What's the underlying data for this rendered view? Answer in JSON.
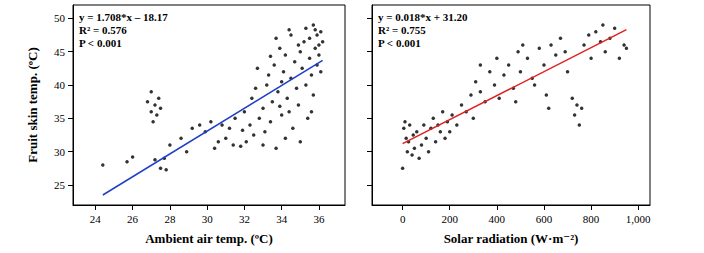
{
  "chart_data": [
    {
      "type": "scatter",
      "x_label": "Ambient air temp. (ºC)",
      "y_label": "Fruit skin temp. (ºC)",
      "annotations": [
        "y = 1.708*x – 18.17",
        "R² = 0.576",
        "P < 0.001"
      ],
      "xlim": [
        22.8,
        37.4
      ],
      "xticks": [
        24,
        26,
        28,
        30,
        32,
        34,
        36
      ],
      "ylim": [
        22,
        52
      ],
      "yticks": [
        25,
        30,
        35,
        40,
        45,
        50
      ],
      "grid": false,
      "series": [
        {
          "type": "scatter",
          "color": "#000000",
          "marker": "circle",
          "x": [
            24.4,
            25.7,
            26,
            26.8,
            27,
            27,
            27.1,
            27.2,
            27.3,
            27.4,
            27.5,
            27.2,
            27.5,
            27.7,
            27.8,
            28,
            28.6,
            28.9,
            29.2,
            29.6,
            29.9,
            30.2,
            30.4,
            30.6,
            30.8,
            31,
            31.2,
            31.4,
            31.5,
            31.8,
            31.9,
            32,
            32.1,
            32.3,
            32.4,
            32.5,
            32.6,
            32.8,
            33,
            33,
            33.1,
            33.2,
            33.3,
            33.4,
            33.5,
            33.6,
            33.7,
            33.7,
            33.8,
            33.9,
            34,
            34,
            34.1,
            34.2,
            34.2,
            34.3,
            34.4,
            34.5,
            34.5,
            34.6,
            34.7,
            34.8,
            34.9,
            35,
            35,
            35.1,
            35.2,
            35.3,
            35.3,
            35.4,
            35.5,
            35.5,
            35.6,
            35.7,
            35.7,
            35.8,
            35.9,
            35.9,
            36,
            36,
            36.1,
            36.1,
            36.2,
            35.6,
            35.8,
            34.9,
            33.9,
            32.7,
            33.4,
            34.4
          ],
          "values": [
            28,
            28.5,
            29.2,
            37.5,
            39,
            36,
            34.5,
            37,
            35.5,
            38,
            36.5,
            28.8,
            27.5,
            29,
            27.3,
            31,
            32,
            30,
            33.5,
            34,
            33,
            34.5,
            30.5,
            31.5,
            34,
            32,
            33.5,
            31,
            35,
            30.8,
            33.2,
            36,
            31.5,
            34,
            38,
            32.5,
            39.5,
            35,
            31,
            36.5,
            33,
            40,
            41.5,
            34.5,
            37.5,
            43,
            30.5,
            47,
            39,
            45.5,
            35.5,
            40.5,
            42,
            32,
            44.5,
            38,
            36,
            41,
            47.5,
            33.5,
            43.5,
            39.5,
            37,
            45,
            31.5,
            42.5,
            46.5,
            40,
            48.5,
            35,
            44,
            47,
            41.5,
            38.5,
            49,
            45.5,
            43,
            47.5,
            46,
            44.5,
            48,
            42,
            46.5,
            36,
            48.3,
            46,
            36.8,
            42.5,
            44.3,
            48.3
          ]
        },
        {
          "type": "line",
          "color": "#1f3fc8",
          "line_style": "solid",
          "x": [
            24.4,
            36.2
          ],
          "values": [
            23.5,
            43.7
          ]
        }
      ]
    },
    {
      "type": "scatter",
      "x_label": "Solar radiation (W·m⁻²)",
      "annotations": [
        "y = 0.018*x + 31.20",
        "R² = 0.755",
        "P < 0.001"
      ],
      "xlim": [
        -130,
        1050
      ],
      "xticks": [
        0,
        200,
        400,
        600,
        800,
        1000
      ],
      "ylim": [
        22,
        52
      ],
      "yticks": [
        25,
        30,
        35,
        40,
        45,
        50
      ],
      "tick_labels": "x",
      "grid": false,
      "series": [
        {
          "type": "scatter",
          "color": "#000000",
          "marker": "circle",
          "x": [
            0,
            5,
            10,
            15,
            20,
            25,
            30,
            40,
            45,
            50,
            60,
            70,
            80,
            90,
            100,
            110,
            120,
            130,
            140,
            150,
            160,
            170,
            180,
            190,
            200,
            210,
            230,
            250,
            270,
            290,
            300,
            310,
            330,
            350,
            370,
            390,
            400,
            410,
            430,
            450,
            470,
            490,
            500,
            510,
            530,
            550,
            560,
            580,
            600,
            610,
            630,
            650,
            670,
            690,
            700,
            720,
            730,
            740,
            750,
            760,
            770,
            790,
            800,
            820,
            840,
            850,
            860,
            880,
            900,
            920,
            940,
            950,
            620,
            480,
            330
          ],
          "values": [
            27.5,
            33.5,
            34.5,
            32,
            30,
            31.5,
            34,
            29.5,
            32.5,
            30.5,
            33,
            29,
            31,
            34,
            32,
            30,
            33.5,
            35,
            31.5,
            34,
            33,
            36,
            32,
            34.5,
            33,
            35.5,
            34,
            37,
            36,
            38.5,
            35,
            40.5,
            39,
            37.5,
            42,
            40,
            44,
            38,
            41.5,
            43,
            39.5,
            45,
            42,
            46,
            44,
            41,
            40,
            45.5,
            43,
            38.5,
            46,
            44.5,
            47,
            45,
            42,
            38,
            35.5,
            37,
            34,
            36.5,
            46,
            47.5,
            44,
            48,
            46.5,
            49,
            45,
            47,
            48.5,
            44,
            46,
            45.5,
            36.5,
            37.5,
            43
          ]
        },
        {
          "type": "line",
          "color": "#e02020",
          "line_style": "solid",
          "x": [
            0,
            950
          ],
          "values": [
            31.2,
            48.3
          ]
        }
      ]
    }
  ]
}
